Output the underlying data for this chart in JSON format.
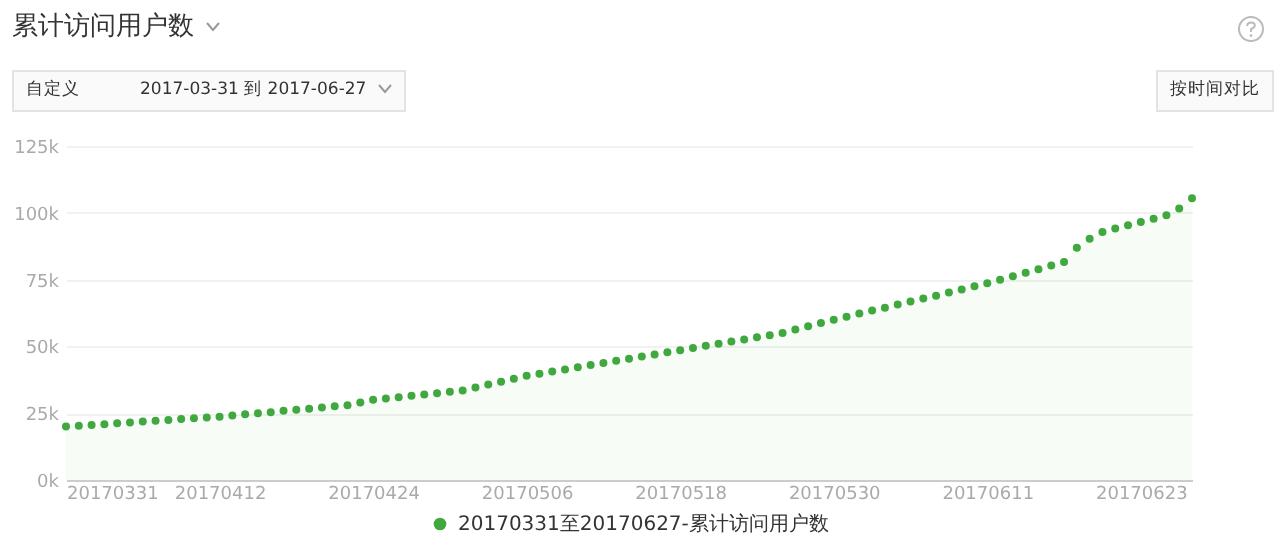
{
  "chart_data": {
    "type": "area",
    "title": "累计访问用户数",
    "annotations": [
      "自定义",
      "2017-03-31 到 2017-06-27",
      "按时间对比"
    ],
    "x": [
      "2017-03-31",
      "2017-04-01",
      "2017-04-02",
      "2017-04-03",
      "2017-04-04",
      "2017-04-05",
      "2017-04-06",
      "2017-04-07",
      "2017-04-08",
      "2017-04-09",
      "2017-04-10",
      "2017-04-11",
      "2017-04-12",
      "2017-04-13",
      "2017-04-14",
      "2017-04-15",
      "2017-04-16",
      "2017-04-17",
      "2017-04-18",
      "2017-04-19",
      "2017-04-20",
      "2017-04-21",
      "2017-04-22",
      "2017-04-23",
      "2017-04-24",
      "2017-04-25",
      "2017-04-26",
      "2017-04-27",
      "2017-04-28",
      "2017-04-29",
      "2017-04-30",
      "2017-05-01",
      "2017-05-02",
      "2017-05-03",
      "2017-05-04",
      "2017-05-05",
      "2017-05-06",
      "2017-05-07",
      "2017-05-08",
      "2017-05-09",
      "2017-05-10",
      "2017-05-11",
      "2017-05-12",
      "2017-05-13",
      "2017-05-14",
      "2017-05-15",
      "2017-05-16",
      "2017-05-17",
      "2017-05-18",
      "2017-05-19",
      "2017-05-20",
      "2017-05-21",
      "2017-05-22",
      "2017-05-23",
      "2017-05-24",
      "2017-05-25",
      "2017-05-26",
      "2017-05-27",
      "2017-05-28",
      "2017-05-29",
      "2017-05-30",
      "2017-05-31",
      "2017-06-01",
      "2017-06-02",
      "2017-06-03",
      "2017-06-04",
      "2017-06-05",
      "2017-06-06",
      "2017-06-07",
      "2017-06-08",
      "2017-06-09",
      "2017-06-10",
      "2017-06-11",
      "2017-06-12",
      "2017-06-13",
      "2017-06-14",
      "2017-06-15",
      "2017-06-16",
      "2017-06-17",
      "2017-06-18",
      "2017-06-19",
      "2017-06-20",
      "2017-06-21",
      "2017-06-22",
      "2017-06-23",
      "2017-06-24",
      "2017-06-25",
      "2017-06-26",
      "2017-06-27"
    ],
    "series": [
      {
        "name": "20170331至20170627-累计访问用户数",
        "color": "#3fa83f",
        "values": [
          20000,
          20300,
          20600,
          20900,
          21200,
          21500,
          21900,
          22200,
          22500,
          22800,
          23100,
          23400,
          23700,
          24100,
          24600,
          25000,
          25400,
          25900,
          26300,
          26700,
          27100,
          27600,
          28000,
          29000,
          30000,
          30500,
          31000,
          31500,
          32000,
          32500,
          33000,
          33500,
          34600,
          35700,
          36800,
          37900,
          39000,
          39800,
          40600,
          41400,
          42200,
          43000,
          43800,
          44600,
          45400,
          46200,
          47000,
          47800,
          48600,
          49400,
          50200,
          51000,
          51800,
          52600,
          53400,
          54200,
          55000,
          56300,
          57500,
          58800,
          60000,
          61100,
          62300,
          63400,
          64500,
          65700,
          66800,
          67900,
          69000,
          70200,
          71300,
          72500,
          73600,
          74900,
          76300,
          77600,
          78900,
          80300,
          81600,
          86900,
          90300,
          92800,
          94100,
          95300,
          96600,
          97800,
          99100,
          101600,
          105400
        ]
      }
    ],
    "xlim": [
      "2017-03-31",
      "2017-06-27"
    ],
    "xticks": [
      {
        "value": "2017-03-31",
        "label": "20170331"
      },
      {
        "value": "2017-04-12",
        "label": "20170412"
      },
      {
        "value": "2017-04-24",
        "label": "20170424"
      },
      {
        "value": "2017-05-06",
        "label": "20170506"
      },
      {
        "value": "2017-05-18",
        "label": "20170518"
      },
      {
        "value": "2017-05-30",
        "label": "20170530"
      },
      {
        "value": "2017-06-11",
        "label": "20170611"
      },
      {
        "value": "2017-06-23",
        "label": "20170623"
      }
    ],
    "ylim": [
      0,
      125000
    ],
    "yticks": [
      {
        "value": 0,
        "label": "0k"
      },
      {
        "value": 25000,
        "label": "25k"
      },
      {
        "value": 50000,
        "label": "50k"
      },
      {
        "value": 75000,
        "label": "75k"
      },
      {
        "value": 100000,
        "label": "100k"
      },
      {
        "value": 125000,
        "label": "125k"
      }
    ],
    "grid": "y",
    "legend": "bottom",
    "marker": "circle"
  }
}
